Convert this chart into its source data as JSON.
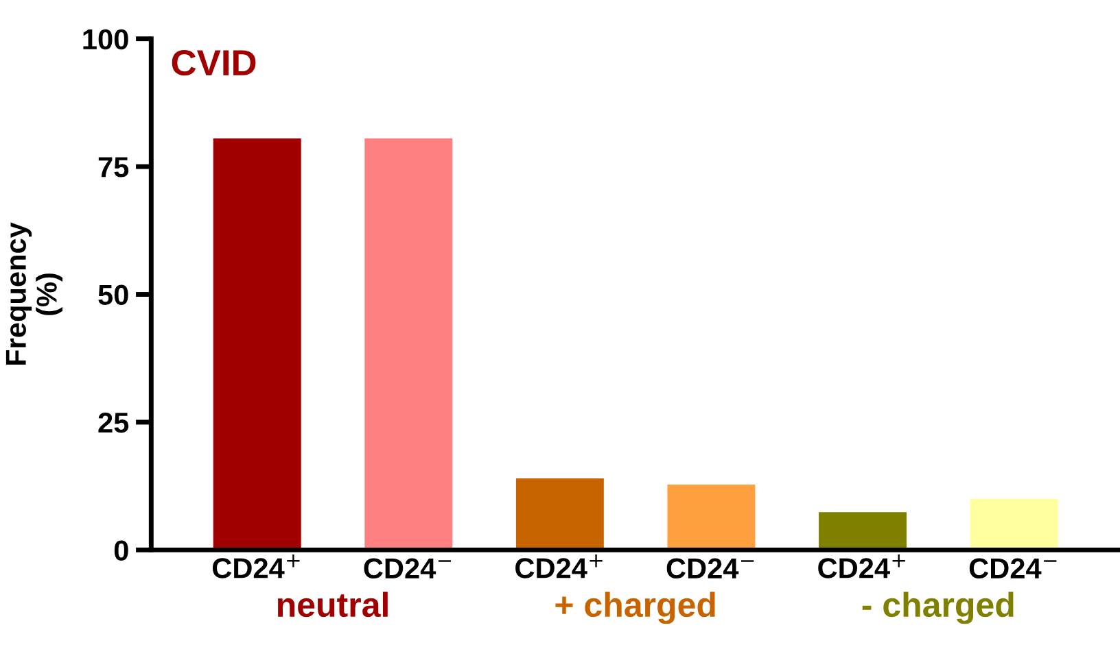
{
  "chart_data": {
    "type": "bar",
    "title": "CVID",
    "ylabel": "Frequency\n(%)",
    "categories": [
      "CD24$^{+}$",
      "CD24$^{−}$",
      "CD24$^{+}$",
      "CD24$^{−}$",
      "CD24$^{+}$",
      "CD24$^{−}$"
    ],
    "values": [
      80.5,
      80.5,
      14,
      12.8,
      7.4,
      10
    ],
    "colors": [
      "#a00000",
      "#ff8080",
      "#c86400",
      "#ffa040",
      "#808000",
      "#ffffa0"
    ],
    "annotations": [
      "neutral",
      "+ charged",
      "- charged"
    ],
    "ylim": [
      0,
      100
    ],
    "yticks": [
      0,
      25,
      50,
      75,
      100
    ],
    "grid": false,
    "legend": false
  }
}
